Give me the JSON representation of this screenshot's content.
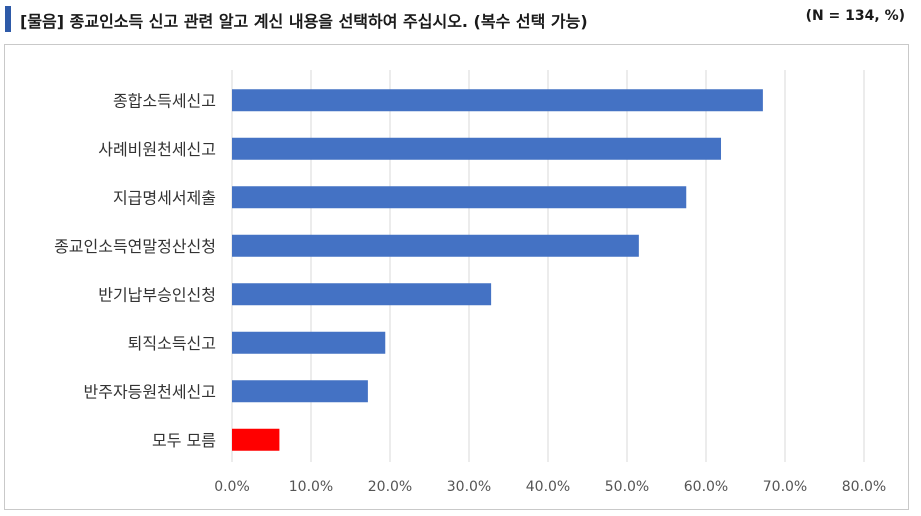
{
  "header": {
    "title": "[물음] 종교인소득 신고 관련 알고 계신 내용을 선택하여 주십시오. (복수 선택 가능)",
    "note": "(N = 134, %)"
  },
  "colors": {
    "accent": "#2e5aa8",
    "bar": "#4472c4",
    "highlight": "#ff0000",
    "grid": "#d9d9d9"
  },
  "chart_data": {
    "type": "bar",
    "orientation": "horizontal",
    "categories": [
      "종합소득세신고",
      "사례비원천세신고",
      "지급명세서제출",
      "종교인소득연말정산신청",
      "반기납부승인신청",
      "퇴직소득신고",
      "반주자등원천세신고",
      "모두 모름"
    ],
    "values": [
      67.2,
      61.9,
      57.5,
      51.5,
      32.8,
      19.4,
      17.2,
      6.0
    ],
    "highlight_index": 7,
    "xlim": [
      0,
      80
    ],
    "xticks": [
      "0.0%",
      "10.0%",
      "20.0%",
      "30.0%",
      "40.0%",
      "50.0%",
      "60.0%",
      "70.0%",
      "80.0%"
    ],
    "grid": true,
    "legend": "none"
  }
}
